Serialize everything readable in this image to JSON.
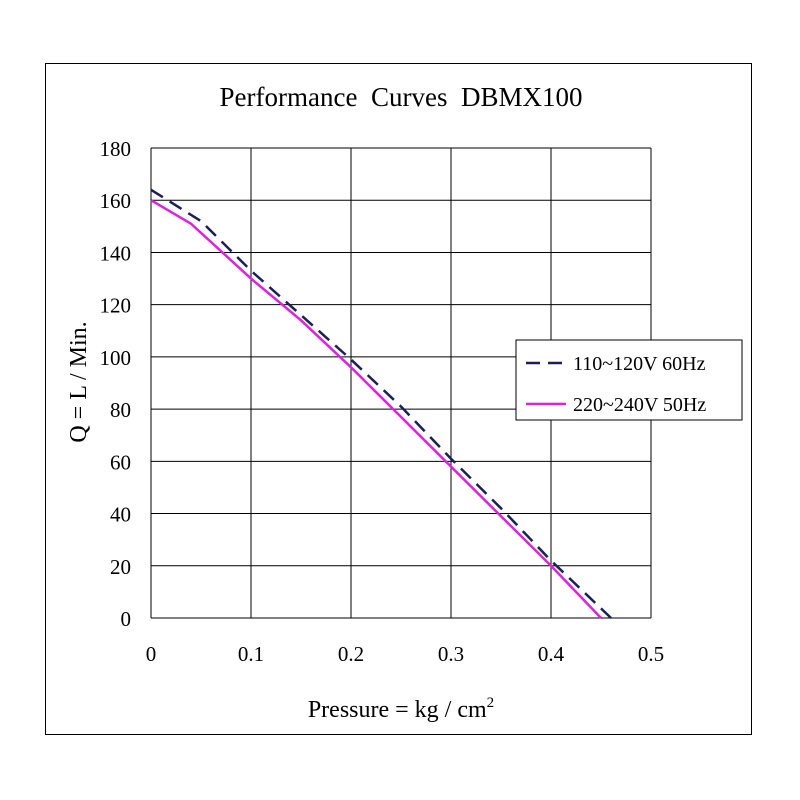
{
  "chart_data": {
    "type": "line",
    "title": "Performance  Curves  DBMX100",
    "xlabel": "Pressure = kg / cm",
    "xlabel_sup": "2",
    "ylabel": "Q = L / Min.",
    "xlim": [
      0,
      0.5
    ],
    "ylim": [
      0,
      180
    ],
    "xticks": [
      0,
      0.1,
      0.2,
      0.3,
      0.4,
      0.5
    ],
    "xtick_labels": [
      "0",
      "0.1",
      "0.2",
      "0.3",
      "0.4",
      "0.5"
    ],
    "yticks": [
      0,
      20,
      40,
      60,
      80,
      100,
      120,
      140,
      160,
      180
    ],
    "ytick_labels": [
      "0",
      "20",
      "40",
      "60",
      "80",
      "100",
      "120",
      "140",
      "160",
      "180"
    ],
    "grid": true,
    "legend_position": "right",
    "series": [
      {
        "name": "110~120V 60Hz",
        "color": "#1a1f5c",
        "style": "dashed",
        "x": [
          0,
          0.05,
          0.1,
          0.15,
          0.2,
          0.25,
          0.3,
          0.35,
          0.4,
          0.46
        ],
        "y": [
          164,
          152,
          133,
          116,
          99,
          81,
          61,
          42,
          22,
          0
        ]
      },
      {
        "name": "220~240V 50Hz",
        "color": "#e020e0",
        "style": "solid",
        "x": [
          0,
          0.04,
          0.1,
          0.15,
          0.2,
          0.25,
          0.3,
          0.35,
          0.4,
          0.45
        ],
        "y": [
          160,
          151,
          130,
          114,
          96,
          77,
          58,
          39,
          20,
          0
        ]
      }
    ]
  }
}
